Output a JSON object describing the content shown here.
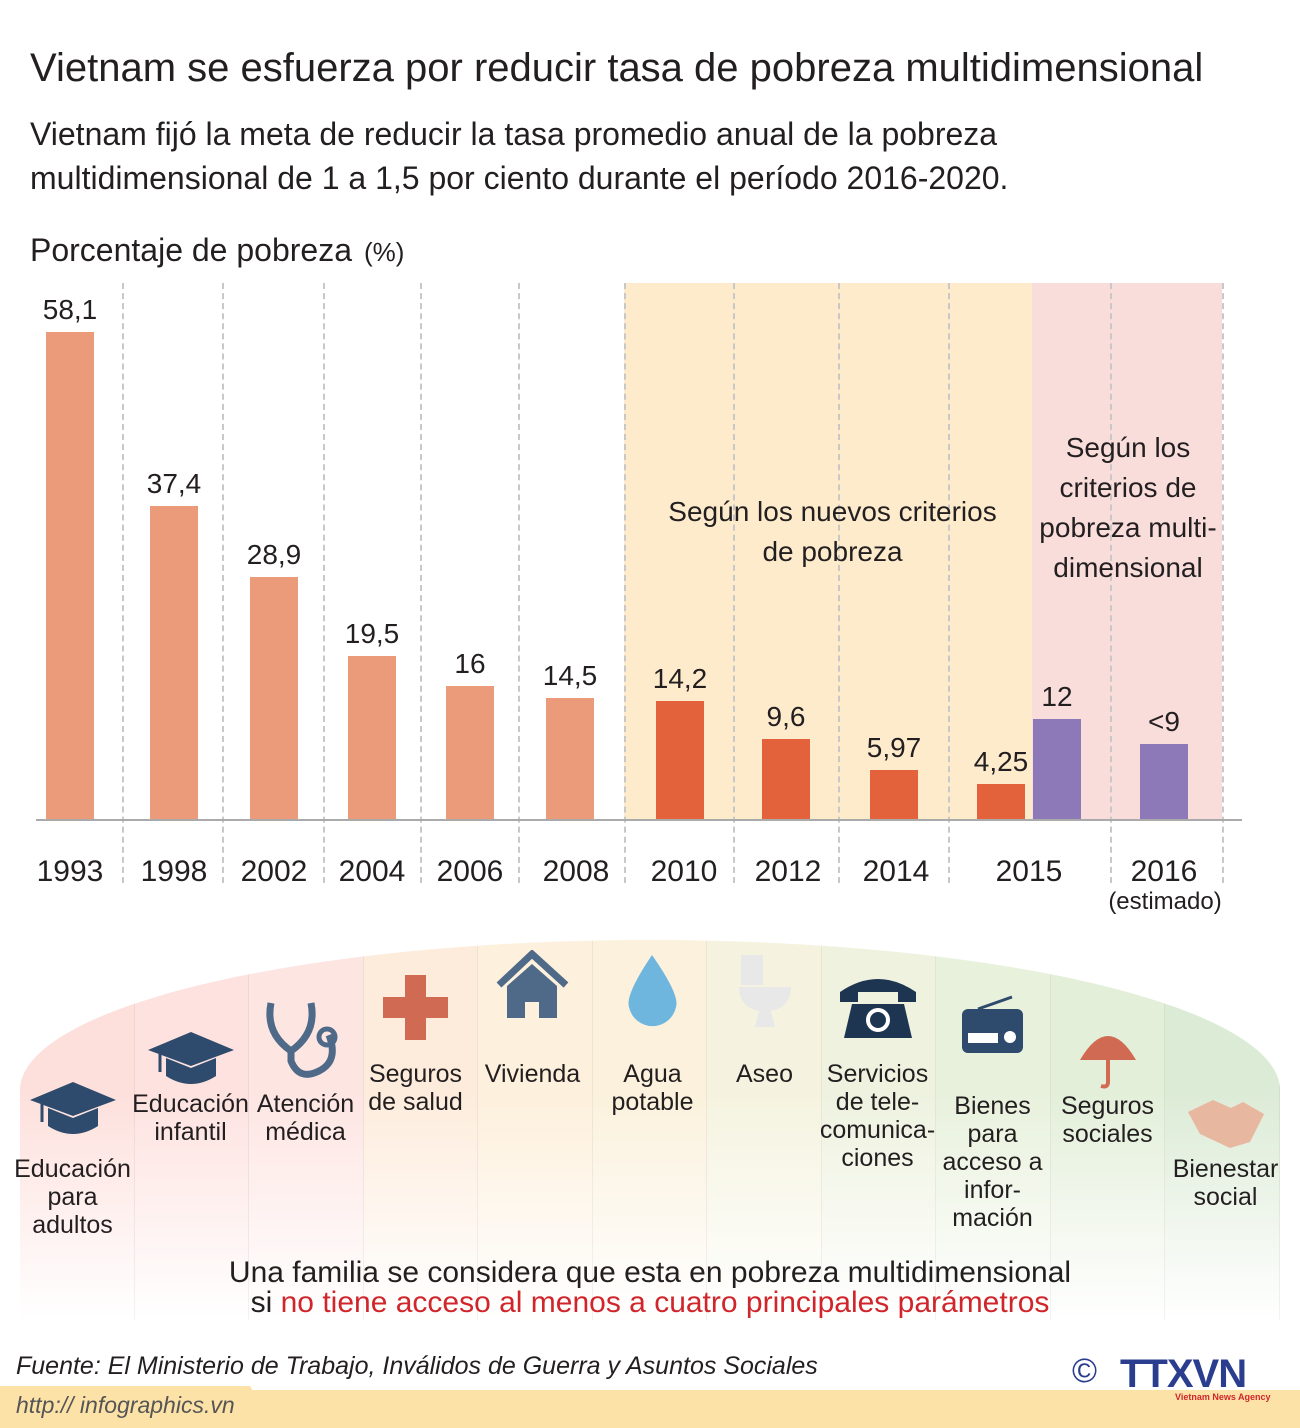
{
  "title": "Vietnam se esfuerza por reducir tasa de pobreza multidimensional",
  "subtitle": "Vietnam fijó la meta de reducir la tasa promedio anual de la pobreza multidimensional de 1 a 1,5 por ciento durante el período 2016-2020.",
  "chart_data": {
    "type": "bar",
    "title": "Porcentaje de pobreza",
    "ylabel": "(%)",
    "xlabel": "",
    "ylim": [
      0,
      60
    ],
    "categories": [
      "1993",
      "1998",
      "2002",
      "2004",
      "2006",
      "2008",
      "2010",
      "2012",
      "2014",
      "2015",
      "2015",
      "2016 (estimado)"
    ],
    "values": [
      58.1,
      37.4,
      28.9,
      19.5,
      16,
      14.5,
      14.2,
      9.6,
      5.97,
      4.25,
      12,
      9
    ],
    "value_labels": [
      "58,1",
      "37,4",
      "28,9",
      "19,5",
      "16",
      "14,5",
      "14,2",
      "9,6",
      "5,97",
      "4,25",
      "12",
      "<9"
    ],
    "x_labels": [
      "1993",
      "1998",
      "2002",
      "2004",
      "2006",
      "2008",
      "2010",
      "2012",
      "2014",
      "2015",
      "2016"
    ],
    "x_sublabel": "(estimado)",
    "series_groups": [
      {
        "name": "old",
        "color": "#eb9b79"
      },
      {
        "name": "Según los nuevos criterios de pobreza",
        "color": "#e3623b"
      },
      {
        "name": "Según los criterios de pobreza multi-dimensional",
        "color": "#8e79b8"
      }
    ],
    "annotations": [
      "Según los nuevos criterios de pobreza",
      "Según los criterios de pobreza multi-dimensional"
    ]
  },
  "indicators": [
    {
      "label": "Educación para adultos",
      "icon": "graduation-cap"
    },
    {
      "label": "Educación infantil",
      "icon": "graduation-cap"
    },
    {
      "label": "Atención médica",
      "icon": "stethoscope"
    },
    {
      "label": "Seguros de salud",
      "icon": "medical-cross"
    },
    {
      "label": "Vivienda",
      "icon": "house"
    },
    {
      "label": "Agua potable",
      "icon": "water-drop"
    },
    {
      "label": "Aseo",
      "icon": "toilet"
    },
    {
      "label": "Servicios de tele-comunica-ciones",
      "icon": "telephone"
    },
    {
      "label": "Bienes para acceso a infor-mación",
      "icon": "radio"
    },
    {
      "label": "Seguros sociales",
      "icon": "umbrella"
    },
    {
      "label": "Bienestar social",
      "icon": "handshake"
    }
  ],
  "footer": {
    "line1": "Una familia se considera que esta en pobreza multidimensional",
    "line2_prefix": "si ",
    "line2_highlight": "no tiene acceso al menos a cuatro principales parámetros"
  },
  "source": "Fuente: El Ministerio de Trabajo, Inválidos de Guerra y Asuntos Sociales",
  "url": "http:// infographics.vn",
  "copyright": "©",
  "logo": "TTXVN",
  "logo_sub": "Vietnam News Agency"
}
